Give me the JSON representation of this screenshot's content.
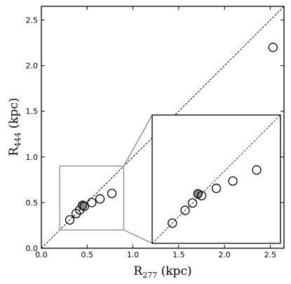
{
  "chart_data": {
    "type": "scatter",
    "x_axis": {
      "label": "R",
      "label_subscript": "277",
      "label_suffix": " (kpc)",
      "range": [
        0.0,
        2.65
      ],
      "ticks": [
        0.0,
        0.5,
        1.0,
        1.5,
        2.0,
        2.5
      ],
      "tick_labels": [
        "0.0",
        "0.5",
        "1.0",
        "1.5",
        "2.0",
        "2.5"
      ]
    },
    "y_axis": {
      "label": "R",
      "label_subscript": "444",
      "label_suffix": " (kpc)",
      "range": [
        0.0,
        2.65
      ],
      "ticks": [
        0.0,
        0.5,
        1.0,
        1.5,
        2.0,
        2.5
      ],
      "tick_labels": [
        "0.0",
        "0.5",
        "1.0",
        "1.5",
        "2.0",
        "2.5"
      ]
    },
    "reference_line": "y = x",
    "grid": false,
    "legend": "none",
    "points": [
      {
        "x": 0.31,
        "y": 0.31,
        "filled": false
      },
      {
        "x": 0.38,
        "y": 0.38,
        "filled": false
      },
      {
        "x": 0.42,
        "y": 0.42,
        "filled": false
      },
      {
        "x": 0.45,
        "y": 0.47,
        "filled": true
      },
      {
        "x": 0.47,
        "y": 0.46,
        "filled": false
      },
      {
        "x": 0.55,
        "y": 0.5,
        "filled": false
      },
      {
        "x": 0.64,
        "y": 0.54,
        "filled": false
      },
      {
        "x": 0.77,
        "y": 0.6,
        "filled": false
      },
      {
        "x": 2.53,
        "y": 2.2,
        "filled": false
      }
    ],
    "inset": {
      "source_region": {
        "x": [
          0.2,
          0.9
        ],
        "y": [
          0.2,
          0.9
        ]
      },
      "placement": "lower-right",
      "points": [
        {
          "x": 0.31,
          "y": 0.31,
          "filled": false
        },
        {
          "x": 0.38,
          "y": 0.38,
          "filled": false
        },
        {
          "x": 0.42,
          "y": 0.42,
          "filled": false
        },
        {
          "x": 0.45,
          "y": 0.47,
          "filled": true
        },
        {
          "x": 0.47,
          "y": 0.46,
          "filled": false
        },
        {
          "x": 0.55,
          "y": 0.5,
          "filled": false
        },
        {
          "x": 0.64,
          "y": 0.54,
          "filled": false
        },
        {
          "x": 0.77,
          "y": 0.6,
          "filled": false
        }
      ]
    }
  }
}
